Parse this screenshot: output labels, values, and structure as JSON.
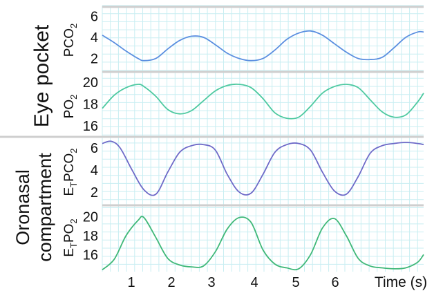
{
  "chart_data": [
    {
      "type": "line",
      "group": "Eye pocket",
      "ylabel": "PCO",
      "ylabel_sub": "2",
      "yticks": [
        2,
        4,
        6
      ],
      "ylim": [
        0.8,
        7.0
      ],
      "xlim": [
        0.3,
        5.7
      ],
      "grid": true,
      "color": "#5b8fe0",
      "x": [
        0.3,
        0.5,
        0.7,
        0.9,
        1.0,
        1.2,
        1.4,
        1.6,
        1.8,
        2.0,
        2.2,
        2.4,
        2.6,
        2.8,
        3.0,
        3.2,
        3.4,
        3.6,
        3.8,
        4.0,
        4.2,
        4.4,
        4.6,
        4.8,
        5.0,
        5.2,
        5.4,
        5.6,
        5.7
      ],
      "values": [
        4.2,
        3.5,
        2.7,
        2.0,
        1.8,
        2.0,
        2.9,
        3.7,
        4.1,
        4.0,
        3.3,
        2.5,
        2.0,
        1.8,
        2.0,
        2.8,
        3.8,
        4.4,
        4.6,
        4.2,
        3.4,
        2.6,
        2.0,
        1.9,
        2.1,
        3.0,
        4.0,
        4.5,
        4.5
      ]
    },
    {
      "type": "line",
      "group": "Eye pocket",
      "ylabel": "PO",
      "ylabel_sub": "2",
      "yticks": [
        16,
        18,
        20
      ],
      "ylim": [
        15.0,
        21.0
      ],
      "xlim": [
        0.3,
        5.7
      ],
      "grid": true,
      "color": "#4dc9a0",
      "x": [
        0.3,
        0.5,
        0.7,
        0.9,
        1.0,
        1.2,
        1.4,
        1.6,
        1.8,
        2.0,
        2.2,
        2.4,
        2.6,
        2.8,
        3.0,
        3.2,
        3.4,
        3.6,
        3.8,
        4.0,
        4.2,
        4.4,
        4.6,
        4.8,
        5.0,
        5.2,
        5.4,
        5.6,
        5.7
      ],
      "values": [
        17.6,
        18.8,
        19.5,
        19.8,
        19.6,
        18.7,
        17.5,
        17.1,
        17.4,
        18.3,
        19.2,
        19.7,
        19.8,
        19.5,
        18.5,
        17.2,
        16.7,
        16.8,
        17.8,
        19.0,
        19.6,
        19.8,
        19.5,
        18.4,
        17.3,
        16.8,
        17.0,
        18.2,
        19.0
      ]
    },
    {
      "type": "line",
      "group": "Oronasal compartment",
      "ylabel": "E",
      "ylabel_sub1": "T",
      "ylabel_mid": "PCO",
      "ylabel_sub": "2",
      "yticks": [
        2,
        4,
        6
      ],
      "ylim": [
        0.8,
        7.0
      ],
      "xlim": [
        0.3,
        5.7
      ],
      "grid": true,
      "color": "#6e6ac8",
      "x": [
        0.3,
        0.45,
        0.6,
        0.8,
        1.0,
        1.2,
        1.4,
        1.6,
        1.8,
        2.0,
        2.2,
        2.4,
        2.6,
        2.8,
        3.0,
        3.2,
        3.4,
        3.6,
        3.8,
        4.0,
        4.2,
        4.4,
        4.6,
        4.8,
        5.0,
        5.2,
        5.4,
        5.6,
        5.7
      ],
      "values": [
        6.4,
        6.6,
        6.0,
        4.0,
        2.2,
        1.8,
        3.8,
        5.6,
        6.2,
        6.3,
        5.8,
        3.6,
        2.0,
        1.9,
        3.6,
        5.6,
        6.3,
        6.4,
        5.8,
        3.8,
        2.1,
        1.8,
        3.4,
        5.5,
        6.2,
        6.4,
        6.5,
        6.4,
        6.3
      ]
    },
    {
      "type": "line",
      "group": "Oronasal compartment",
      "ylabel": "E",
      "ylabel_sub1": "T",
      "ylabel_mid": "PO",
      "ylabel_sub": "2",
      "yticks": [
        16,
        18,
        20
      ],
      "ylim": [
        14.2,
        21.2
      ],
      "xlim": [
        0.3,
        5.7
      ],
      "grid": true,
      "color": "#3fb878",
      "x": [
        0.3,
        0.5,
        0.7,
        0.9,
        1.0,
        1.2,
        1.4,
        1.6,
        1.8,
        2.0,
        2.2,
        2.4,
        2.6,
        2.8,
        3.0,
        3.2,
        3.4,
        3.6,
        3.8,
        4.0,
        4.2,
        4.4,
        4.6,
        4.8,
        5.0,
        5.2,
        5.4,
        5.6,
        5.7
      ],
      "values": [
        14.4,
        15.5,
        18.0,
        19.6,
        19.9,
        17.8,
        15.6,
        14.9,
        14.7,
        14.8,
        16.3,
        18.7,
        19.9,
        19.4,
        16.5,
        15.0,
        14.6,
        14.5,
        16.0,
        18.8,
        19.8,
        18.0,
        15.6,
        14.8,
        14.6,
        14.5,
        14.6,
        15.2,
        16.0
      ]
    }
  ],
  "xaxis": {
    "ticks": [
      1,
      2,
      3,
      4,
      5,
      6
    ],
    "label": "Time (s)"
  },
  "groups": {
    "top": "Eye pocket",
    "bottom_line1": "Oronasal",
    "bottom_line2": "compartment"
  },
  "colors": {
    "grid": "#c9eef2",
    "separator": "#cfcfcf"
  }
}
